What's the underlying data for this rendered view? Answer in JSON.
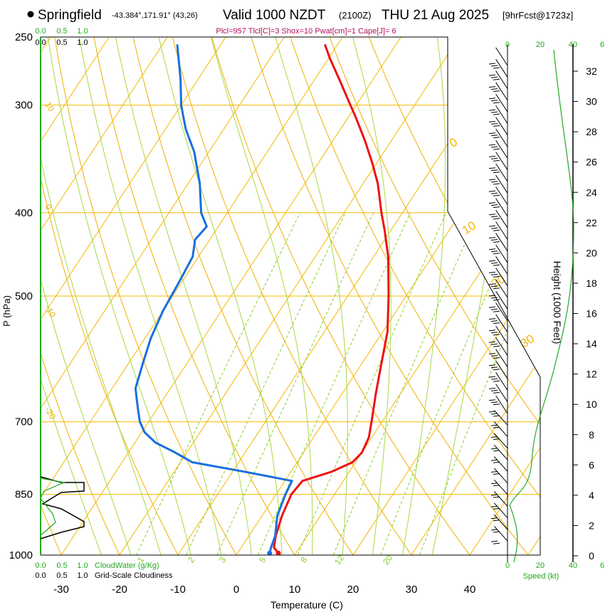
{
  "header": {
    "station": "Springfield",
    "coords": "-43.384°,171.91° (43,26)",
    "valid": "Valid 1000 NZDT",
    "utc": "(2100Z)",
    "date": "THU 21 Aug 2025",
    "forecast": "[9hrFcst@1723z]",
    "indices": "Plcl=957 Tlcl[C]=3 Shox=10 Pwat[cm]=1 Cape[J]= 6"
  },
  "colors": {
    "temperature": "#ee1111",
    "dewpoint": "#1a6fe0",
    "isotherm": "#f5b800",
    "dry_adiabat": "#f0b000",
    "moist_adiabat": "#a8d840",
    "mixing_ratio": "#8ccc30",
    "cloud": "#22aa22",
    "index_text": "#b0105a"
  },
  "chart_data": {
    "type": "skew-t",
    "title": "Springfield Valid 1000 NZDT THU 21 Aug 2025",
    "xlabel": "Temperature (C)",
    "ylabel": "P (hPa)",
    "y2label": "Height (1000 Feet)",
    "speed_label": "Speed (kt)",
    "pressure_ticks": [
      "250",
      "300",
      "400",
      "500",
      "700",
      "850",
      "1000"
    ],
    "pressure_values": [
      250,
      300,
      400,
      500,
      700,
      850,
      1000
    ],
    "temperature_ticks": [
      "-30",
      "-20",
      "-10",
      "0",
      "10",
      "20",
      "30",
      "40"
    ],
    "temperature_values": [
      -30,
      -20,
      -10,
      0,
      10,
      20,
      30,
      40
    ],
    "height_ticks": [
      "0",
      "2",
      "4",
      "6",
      "8",
      "10",
      "12",
      "14",
      "16",
      "18",
      "20",
      "22",
      "24",
      "26",
      "28",
      "30",
      "32"
    ],
    "speed_ticks_top": [
      "0",
      "20",
      "40",
      "6"
    ],
    "speed_ticks_bottom": [
      "0",
      "20",
      "40",
      "6"
    ],
    "cloud_scale_top": [
      "0.0",
      "0.5",
      "1.0"
    ],
    "cloud_scale_top2": [
      "0.0",
      "0.5",
      "1.0"
    ],
    "cloud_scale_bottom": [
      "0.0",
      "0.5",
      "1.0"
    ],
    "cloud_scale_bottom2": [
      "0.0",
      "0.5",
      "1.0"
    ],
    "cloudwater_label": "CloudWater (g/Kg)",
    "cloudiness_label": "Grid-Scale Cloudiness",
    "dry_adiabat_labels": [
      "10",
      "0",
      "-10",
      "-20"
    ],
    "isotherm_labels": [
      "0",
      "10",
      "20",
      "30"
    ],
    "mixing_ratio_labels": [
      "1",
      "2",
      "3",
      "5",
      "8",
      "12",
      "20"
    ],
    "temperature_profile": [
      [
        995,
        7.0
      ],
      [
        980,
        5.6
      ],
      [
        950,
        4.6
      ],
      [
        900,
        3.4
      ],
      [
        850,
        2.6
      ],
      [
        820,
        3.0
      ],
      [
        800,
        7.0
      ],
      [
        780,
        9.5
      ],
      [
        760,
        10.0
      ],
      [
        730,
        9.5
      ],
      [
        700,
        8.2
      ],
      [
        650,
        5.8
      ],
      [
        600,
        3.4
      ],
      [
        550,
        0.8
      ],
      [
        500,
        -3.0
      ],
      [
        450,
        -7.5
      ],
      [
        420,
        -11.0
      ],
      [
        400,
        -13.6
      ],
      [
        370,
        -17.5
      ],
      [
        350,
        -20.8
      ],
      [
        330,
        -24.5
      ],
      [
        310,
        -28.7
      ],
      [
        300,
        -31.0
      ],
      [
        280,
        -35.8
      ],
      [
        265,
        -39.7
      ],
      [
        255,
        -42.2
      ]
    ],
    "dewpoint_profile": [
      [
        995,
        5.5
      ],
      [
        980,
        5.1
      ],
      [
        950,
        4.5
      ],
      [
        900,
        2.6
      ],
      [
        850,
        1.6
      ],
      [
        820,
        1.2
      ],
      [
        800,
        -8.0
      ],
      [
        780,
        -18.0
      ],
      [
        760,
        -22.0
      ],
      [
        740,
        -26.5
      ],
      [
        720,
        -29.5
      ],
      [
        700,
        -31.5
      ],
      [
        680,
        -33.0
      ],
      [
        660,
        -34.5
      ],
      [
        640,
        -36.0
      ],
      [
        600,
        -37.5
      ],
      [
        560,
        -39.0
      ],
      [
        520,
        -40.0
      ],
      [
        480,
        -40.5
      ],
      [
        450,
        -41.0
      ],
      [
        430,
        -42.5
      ],
      [
        415,
        -42.0
      ],
      [
        400,
        -44.5
      ],
      [
        370,
        -48.0
      ],
      [
        340,
        -52.5
      ],
      [
        320,
        -56.5
      ],
      [
        300,
        -60.0
      ],
      [
        280,
        -63.0
      ],
      [
        255,
        -67.5
      ]
    ],
    "ylim": [
      1000,
      250
    ],
    "xlim": [
      -35,
      48
    ]
  }
}
